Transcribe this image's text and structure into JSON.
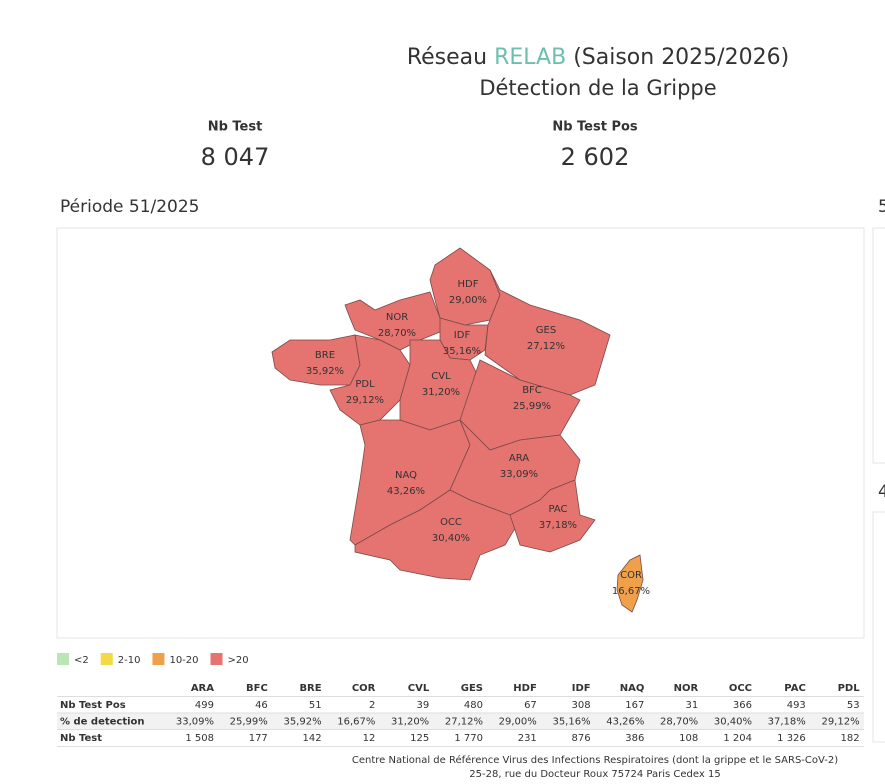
{
  "header": {
    "title_prefix": "Réseau",
    "title_highlight": "RELAB",
    "title_suffix": "(Saison 2025/2026)",
    "subtitle": "Détection de la Grippe"
  },
  "kpis": [
    {
      "label": "Nb Test",
      "value": "8 047"
    },
    {
      "label": "Nb Test Pos",
      "value": "2 602"
    }
  ],
  "period": "Période 51/2025",
  "side_labels": [
    "5",
    "4"
  ],
  "map": {
    "regions": [
      {
        "code": "HDF",
        "rate": "29,00%",
        "color": "#e5736f"
      },
      {
        "code": "NOR",
        "rate": "28,70%",
        "color": "#e5736f"
      },
      {
        "code": "IDF",
        "rate": "35,16%",
        "color": "#e5736f"
      },
      {
        "code": "GES",
        "rate": "27,12%",
        "color": "#e5736f"
      },
      {
        "code": "BRE",
        "rate": "35,92%",
        "color": "#e5736f"
      },
      {
        "code": "PDL",
        "rate": "29,12%",
        "color": "#e5736f"
      },
      {
        "code": "CVL",
        "rate": "31,20%",
        "color": "#e5736f"
      },
      {
        "code": "BFC",
        "rate": "25,99%",
        "color": "#e5736f"
      },
      {
        "code": "NAQ",
        "rate": "43,26%",
        "color": "#e5736f"
      },
      {
        "code": "ARA",
        "rate": "33,09%",
        "color": "#e5736f"
      },
      {
        "code": "OCC",
        "rate": "30,40%",
        "color": "#e5736f"
      },
      {
        "code": "PAC",
        "rate": "37,18%",
        "color": "#e5736f"
      },
      {
        "code": "COR",
        "rate": "16,67%",
        "color": "#f0a04b"
      }
    ]
  },
  "legend": [
    {
      "label": "<2",
      "color": "#b9e6b2"
    },
    {
      "label": "2-10",
      "color": "#f5d846"
    },
    {
      "label": "10-20",
      "color": "#f0a04b"
    },
    {
      "label": ">20",
      "color": "#e5736f"
    }
  ],
  "table": {
    "columns": [
      "ARA",
      "BFC",
      "BRE",
      "COR",
      "CVL",
      "GES",
      "HDF",
      "IDF",
      "NAQ",
      "NOR",
      "OCC",
      "PAC",
      "PDL"
    ],
    "rows": [
      {
        "label": "Nb Test Pos",
        "cells": [
          "499",
          "46",
          "51",
          "2",
          "39",
          "480",
          "67",
          "308",
          "167",
          "31",
          "366",
          "493",
          "53"
        ]
      },
      {
        "label": "% de detection",
        "cells": [
          "33,09%",
          "25,99%",
          "35,92%",
          "16,67%",
          "31,20%",
          "27,12%",
          "29,00%",
          "35,16%",
          "43,26%",
          "28,70%",
          "30,40%",
          "37,18%",
          "29,12%"
        ]
      },
      {
        "label": "Nb Test",
        "cells": [
          "1 508",
          "177",
          "142",
          "12",
          "125",
          "1 770",
          "231",
          "876",
          "386",
          "108",
          "1 204",
          "1 326",
          "182"
        ]
      }
    ]
  },
  "footer": [
    "Centre National de Référence Virus des Infections Respiratoires (dont la grippe et le SARS-CoV-2)",
    "25-28, rue du Docteur Roux 75724 Paris Cedex 15"
  ]
}
